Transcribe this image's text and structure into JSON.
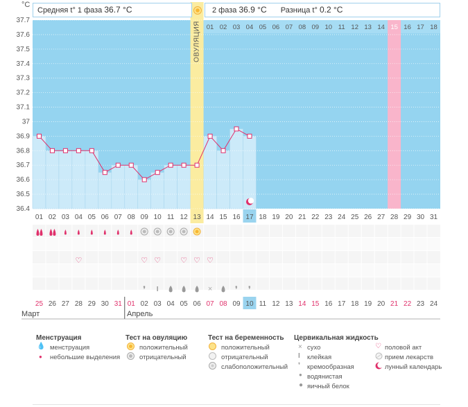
{
  "header": {
    "unit": "°C",
    "phase1_label": "Средняя t° 1 фаза",
    "phase1_value": "36.7 °C",
    "phase2_label": "2 фаза",
    "phase2_value": "36.9 °C",
    "diff_label": "Разница t°",
    "diff_value": "0.2 °C"
  },
  "ovulation_label": "ОВУЛЯЦИЯ",
  "colors": {
    "accent": "#e0306b",
    "bar": "#cceaf9",
    "sky": "#95d4f0",
    "ovulation": "#fbeca0",
    "highlight": "#f9b5cb"
  },
  "chart_data": {
    "type": "line",
    "title": "",
    "ylabel": "°C",
    "ylim": [
      36.4,
      37.7
    ],
    "yticks": [
      "37.7",
      "37.6",
      "37.5",
      "37.4",
      "37.3",
      "37.2",
      "37.1",
      "37",
      "36.9",
      "36.8",
      "36.7",
      "36.6",
      "36.5",
      "36.4"
    ],
    "cycle_days": [
      "01",
      "02",
      "03",
      "04",
      "05",
      "06",
      "07",
      "08",
      "09",
      "10",
      "11",
      "12",
      "13",
      "14",
      "15",
      "16",
      "17",
      "18",
      "19",
      "20",
      "21",
      "22",
      "23",
      "24",
      "25",
      "26",
      "27",
      "28",
      "29",
      "30",
      "31"
    ],
    "temperatures": [
      36.9,
      36.8,
      36.8,
      36.8,
      36.8,
      36.65,
      36.7,
      36.7,
      36.6,
      36.65,
      36.7,
      36.7,
      36.7,
      36.9,
      36.8,
      36.95,
      36.9
    ],
    "ovulation_day_index": 12,
    "current_day_index": 16,
    "top_days": [
      "01",
      "02",
      "03",
      "04",
      "05",
      "06",
      "07",
      "08",
      "09",
      "10",
      "11",
      "12",
      "13",
      "14",
      "15",
      "16",
      "17",
      "18"
    ],
    "top_highlight_index": 14,
    "dates": [
      "25",
      "26",
      "27",
      "28",
      "29",
      "30",
      "31",
      "01",
      "02",
      "03",
      "04",
      "05",
      "06",
      "07",
      "08",
      "09",
      "10",
      "11",
      "12",
      "13",
      "14",
      "15",
      "16",
      "17",
      "18",
      "19",
      "20",
      "21",
      "22",
      "23",
      "24"
    ],
    "red_date_indices": [
      0,
      6,
      7,
      13,
      14,
      20,
      21,
      27,
      28
    ],
    "today_date_index": 16,
    "menstruation": [
      "heavy",
      "heavy",
      "light",
      "light",
      "light",
      "light",
      "light",
      "light"
    ],
    "ovulation_tests": [
      "",
      "",
      "",
      "",
      "",
      "",
      "",
      "",
      "negative",
      "negative",
      "negative",
      "negative",
      "positive",
      "",
      ""
    ],
    "intercourse_days": [
      3,
      8,
      9,
      11,
      12,
      13
    ],
    "cervical": [
      "",
      "",
      "",
      "",
      "",
      "",
      "",
      "",
      "creamy",
      "sticky",
      "watery",
      "watery",
      "watery",
      "dry",
      "watery",
      "creamy",
      "creamy"
    ]
  },
  "months": {
    "left": "Март",
    "right": "Апрель"
  },
  "legend": {
    "menstruation": {
      "title": "Менструация",
      "items": [
        "менструация",
        "небольшие выделения"
      ]
    },
    "ovulation_test": {
      "title": "Тест на овуляцию",
      "items": [
        "положительный",
        "отрицательный"
      ]
    },
    "pregnancy_test": {
      "title": "Тест на беременность",
      "items": [
        "положительный",
        "отрицательный",
        "слабоположительный"
      ]
    },
    "cervical": {
      "title": "Цервикальная жидкость",
      "items": [
        "сухо",
        "клейкая",
        "кремообразная",
        "водянистая",
        "яичный белок"
      ]
    },
    "other": {
      "items": [
        "половой акт",
        "прием лекарств",
        "лунный календарь"
      ]
    }
  }
}
